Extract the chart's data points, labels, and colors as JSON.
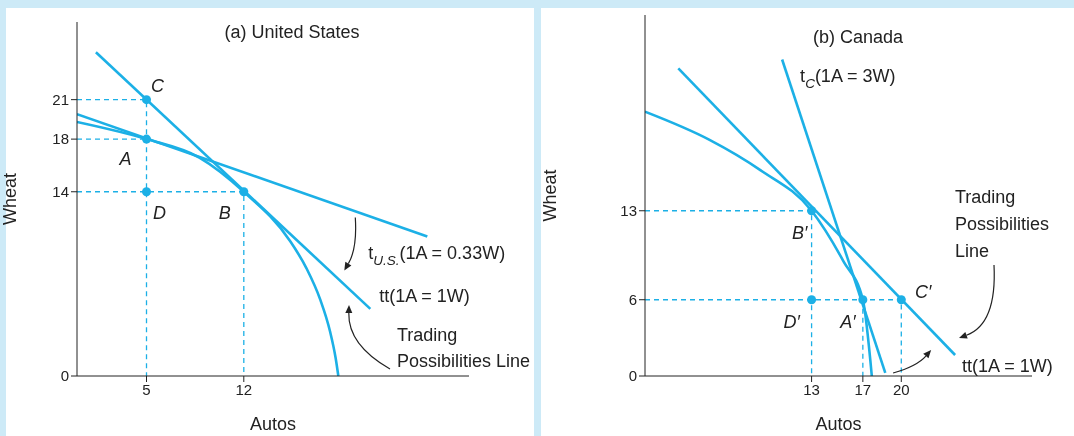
{
  "chart_data": [
    {
      "type": "line",
      "title": "(a) United States",
      "xlabel": "Autos",
      "ylabel": "Wheat",
      "xlim": [
        0,
        28.2
      ],
      "ylim": [
        0,
        26.9
      ],
      "xticks": [
        5,
        12
      ],
      "yticks": [
        0,
        14,
        18,
        21
      ],
      "series": [
        {
          "color": "#1cb0e6",
          "x": [
            0,
            5,
            8.8,
            12,
            15.3,
            16.5,
            17.5,
            18.2,
            18.6,
            18.8
          ],
          "values": [
            19.3,
            18,
            16.6,
            14,
            10.3,
            8.2,
            5.8,
            3.4,
            1.4,
            0
          ]
        },
        {
          "name": "t$_{U.S.}$(1A = 0.33W)",
          "color": "#1cb0e6",
          "x": [
            0,
            25.2
          ],
          "values": [
            19.9,
            10.6
          ]
        },
        {
          "name": "tt(1A = 1W)",
          "color": "#1cb0e6",
          "x": [
            1.36,
            21.1
          ],
          "values": [
            24.6,
            5.1
          ]
        },
        {
          "line_style": "dashed",
          "color": "#1cb0e6",
          "x": [
            0,
            5,
            5
          ],
          "values": [
            21,
            21,
            0
          ]
        },
        {
          "line_style": "dashed",
          "color": "#1cb0e6",
          "x": [
            0,
            5
          ],
          "values": [
            18,
            18
          ]
        },
        {
          "line_style": "dashed",
          "color": "#1cb0e6",
          "x": [
            0,
            12,
            12
          ],
          "values": [
            14,
            14,
            0
          ]
        },
        {
          "type": "scatter",
          "marker": "circle",
          "color": "#1cb0e6",
          "x": [
            5,
            5,
            5,
            12
          ],
          "values": [
            21,
            18,
            14,
            14
          ]
        }
      ],
      "annotations": [
        {
          "text": "C",
          "x": 5,
          "y": 21
        },
        {
          "text": "A",
          "x": 5,
          "y": 18
        },
        {
          "text": "D",
          "x": 5,
          "y": 14
        },
        {
          "text": "B",
          "x": 12,
          "y": 14
        },
        "Trading Possibilities Line"
      ]
    },
    {
      "type": "line",
      "title": "(b) Canada",
      "xlabel": "Autos",
      "ylabel": "Wheat",
      "xlim": [
        0,
        30.2
      ],
      "ylim": [
        0,
        28.4
      ],
      "xticks": [
        13,
        17,
        20
      ],
      "yticks": [
        0,
        6,
        13
      ],
      "series": [
        {
          "color": "#1cb0e6",
          "x": [
            0,
            5,
            9,
            13,
            15.5,
            17,
            17.7
          ],
          "values": [
            20.8,
            18.6,
            16.2,
            13,
            9,
            6,
            0
          ]
        },
        {
          "name": "t$_{C}$(1A = 3W)",
          "color": "#1cb0e6",
          "x": [
            10.7,
            18.75
          ],
          "values": [
            24.9,
            0.25
          ]
        },
        {
          "name": "tt(1A = 1W)",
          "color": "#1cb0e6",
          "x": [
            2.6,
            24.2
          ],
          "values": [
            24.2,
            1.65
          ]
        },
        {
          "line_style": "dashed",
          "color": "#1cb0e6",
          "x": [
            0,
            13,
            13
          ],
          "values": [
            13,
            13,
            0
          ]
        },
        {
          "line_style": "dashed",
          "color": "#1cb0e6",
          "x": [
            0,
            20,
            20
          ],
          "values": [
            6,
            6,
            0
          ]
        },
        {
          "line_style": "dashed",
          "color": "#1cb0e6",
          "x": [
            17,
            17
          ],
          "values": [
            6,
            0
          ]
        },
        {
          "type": "scatter",
          "marker": "circle",
          "color": "#1cb0e6",
          "x": [
            13,
            13,
            17,
            20
          ],
          "values": [
            13,
            6,
            6,
            6
          ]
        }
      ],
      "annotations": [
        {
          "text": "B′",
          "x": 13,
          "y": 13
        },
        {
          "text": "D′",
          "x": 13,
          "y": 6
        },
        {
          "text": "A′",
          "x": 17,
          "y": 6
        },
        {
          "text": "C′",
          "x": 20,
          "y": 6
        },
        "Trading Possibilities Line"
      ]
    }
  ]
}
